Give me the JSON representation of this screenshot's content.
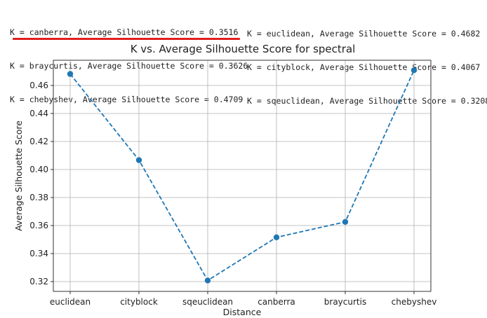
{
  "console": {
    "left": [
      "K = canberra, Average Silhouette Score = 0.3516",
      "K = braycurtis, Average Silhouette Score = 0.3626",
      "K = chebyshev, Average Silhouette Score = 0.4709"
    ],
    "right": [
      "K = euclidean, Average Silhouette Score = 0.4682",
      "K = cityblock, Average Silhouette Score = 0.4067",
      "K = sqeuclidean, Average Silhouette Score = 0.3208"
    ],
    "highlight_color": "#e01f1f"
  },
  "chart_data": {
    "type": "line",
    "title": "K vs. Average Silhouette Score for spectral",
    "xlabel": "Distance",
    "ylabel": "Average Silhouette Score",
    "categories": [
      "euclidean",
      "cityblock",
      "sqeuclidean",
      "canberra",
      "braycurtis",
      "chebyshev"
    ],
    "values": [
      0.4682,
      0.4067,
      0.3208,
      0.3516,
      0.3626,
      0.4709
    ],
    "ylim": [
      0.313,
      0.478
    ],
    "yticks": [
      "0.32",
      "0.34",
      "0.36",
      "0.38",
      "0.40",
      "0.42",
      "0.44",
      "0.46"
    ],
    "grid": true,
    "line_style": "dashed",
    "marker": "circle",
    "color": "#1f77b4"
  }
}
